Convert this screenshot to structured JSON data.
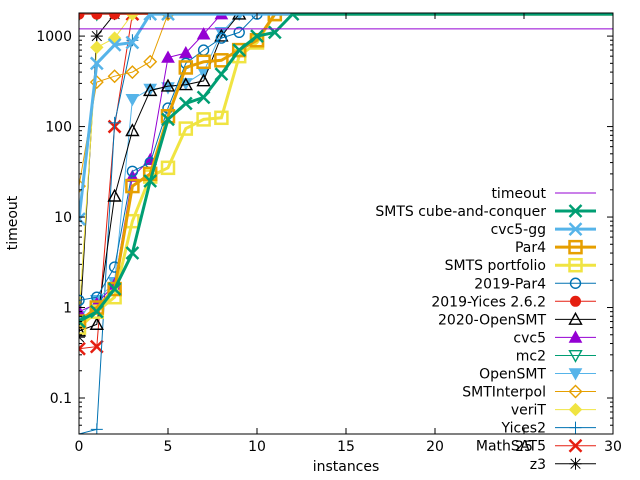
{
  "chart_data": {
    "type": "line",
    "title": "",
    "xlabel": "instances",
    "ylabel": "timeout",
    "xlim": [
      0,
      30
    ],
    "ylim": [
      0.04,
      1800
    ],
    "yscale": "log",
    "grid": false,
    "legend_position": "right",
    "x_ticks": [
      "0",
      "5",
      "10",
      "15",
      "20",
      "25",
      "30"
    ],
    "y_ticks": [
      "0.1",
      "1",
      "10",
      "100",
      "1000"
    ],
    "series": [
      {
        "name": "timeout",
        "color": "#9400d3",
        "marker": "none",
        "width": 1,
        "x": [
          0,
          30
        ],
        "y": [
          1200,
          1200
        ]
      },
      {
        "name": "SMTS cube-and-conquer",
        "color": "#009e73",
        "marker": "x",
        "width": 3,
        "x": [
          0,
          1,
          2,
          3,
          4,
          5,
          6,
          7,
          8,
          9,
          10,
          11,
          12,
          30
        ],
        "y": [
          0.7,
          0.9,
          1.6,
          4,
          25,
          120,
          180,
          210,
          380,
          700,
          1000,
          1100,
          1750,
          1750
        ]
      },
      {
        "name": "cvc5-gg",
        "color": "#56b4e9",
        "marker": "x",
        "width": 3,
        "x": [
          0,
          1,
          2,
          3,
          4,
          5,
          30
        ],
        "y": [
          9.5,
          500,
          800,
          850,
          1750,
          1750,
          1750
        ]
      },
      {
        "name": "Par4",
        "color": "#e69f00",
        "marker": "square",
        "width": 3,
        "x": [
          0,
          1,
          2,
          3,
          4,
          5,
          6,
          7,
          8,
          9,
          10,
          11,
          30
        ],
        "y": [
          0.7,
          1.0,
          1.6,
          22,
          30,
          130,
          450,
          520,
          540,
          700,
          900,
          1750,
          1750
        ]
      },
      {
        "name": "SMTS portfolio",
        "color": "#f0e442",
        "marker": "square",
        "width": 3,
        "x": [
          0,
          1,
          2,
          3,
          4,
          5,
          6,
          7,
          8,
          9,
          10,
          11,
          30
        ],
        "y": [
          0.6,
          0.9,
          1.3,
          9,
          28,
          35,
          95,
          120,
          125,
          600,
          850,
          1750,
          1750
        ]
      },
      {
        "name": "2019-Par4",
        "color": "#0072b2",
        "marker": "circle",
        "width": 1,
        "x": [
          0,
          1,
          2,
          3,
          4,
          5,
          6,
          7,
          8,
          9,
          10,
          30
        ],
        "y": [
          1.2,
          1.3,
          2.8,
          32,
          40,
          160,
          500,
          700,
          950,
          1100,
          1750,
          1750
        ]
      },
      {
        "name": "2019-Yices 2.6.2",
        "color": "#e51e10",
        "marker": "filled-circle",
        "width": 1,
        "x": [
          0,
          1,
          2,
          30
        ],
        "y": [
          1750,
          1750,
          1750,
          1750
        ]
      },
      {
        "name": "2020-OpenSMT",
        "color": "#000000",
        "marker": "triangle",
        "width": 1,
        "x": [
          0,
          1,
          2,
          3,
          4,
          5,
          6,
          7,
          8,
          9,
          30
        ],
        "y": [
          0.55,
          0.65,
          17,
          90,
          250,
          280,
          290,
          320,
          1000,
          1750,
          1750
        ]
      },
      {
        "name": "cvc5",
        "color": "#9400d3",
        "marker": "filled-triangle",
        "width": 1,
        "x": [
          0,
          1,
          2,
          3,
          4,
          5,
          6,
          7,
          8,
          30
        ],
        "y": [
          0.9,
          1.1,
          1.8,
          28,
          43,
          580,
          650,
          1050,
          1750,
          1750
        ]
      },
      {
        "name": "mc2",
        "color": "#009e73",
        "marker": "inv-triangle",
        "width": 1,
        "x": [
          0,
          1,
          30
        ],
        "y": [
          1750,
          1750,
          1750
        ]
      },
      {
        "name": "OpenSMT",
        "color": "#56b4e9",
        "marker": "filled-inv-triangle",
        "width": 1,
        "x": [
          0,
          1,
          2,
          3,
          4,
          5,
          6,
          7,
          8,
          9,
          30
        ],
        "y": [
          0.8,
          1.2,
          1.9,
          200,
          260,
          270,
          300,
          400,
          1100,
          1750,
          1750
        ]
      },
      {
        "name": "SMTInterpol",
        "color": "#e69f00",
        "marker": "diamond",
        "width": 1,
        "x": [
          0,
          1,
          2,
          3,
          4,
          5,
          30
        ],
        "y": [
          22,
          310,
          360,
          400,
          520,
          1750,
          1750
        ]
      },
      {
        "name": "veriT",
        "color": "#f0e442",
        "marker": "filled-diamond",
        "width": 1,
        "x": [
          0,
          1,
          2,
          3,
          30
        ],
        "y": [
          0.8,
          750,
          950,
          1750,
          1750
        ]
      },
      {
        "name": "Yices2",
        "color": "#0072b2",
        "marker": "plus",
        "width": 1,
        "x": [
          0,
          1,
          2,
          3,
          4,
          30
        ],
        "y": [
          0.04,
          0.045,
          110,
          900,
          1750,
          1750
        ]
      },
      {
        "name": "MathSAT5",
        "color": "#e51e10",
        "marker": "x",
        "width": 1,
        "x": [
          0,
          1,
          2,
          3,
          30
        ],
        "y": [
          0.35,
          0.37,
          100,
          1750,
          1750
        ]
      },
      {
        "name": "z3",
        "color": "#000000",
        "marker": "star",
        "width": 1,
        "x": [
          0,
          1,
          2,
          3,
          30
        ],
        "y": [
          0.47,
          1000,
          1750,
          1750,
          1750
        ]
      }
    ]
  }
}
